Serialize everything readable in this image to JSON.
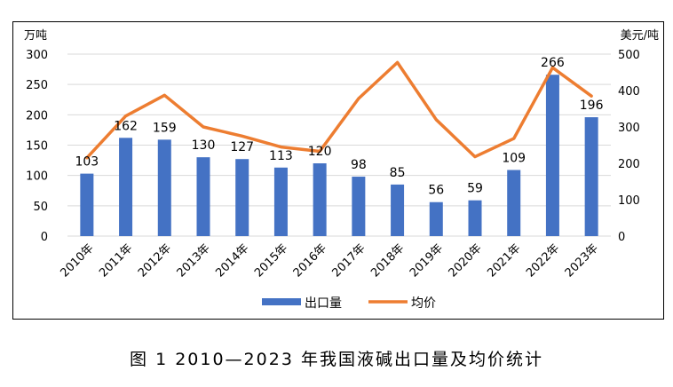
{
  "chart_data": {
    "type": "bar+line",
    "categories": [
      "2010年",
      "2011年",
      "2012年",
      "2013年",
      "2014年",
      "2015年",
      "2016年",
      "2017年",
      "2018年",
      "2019年",
      "2020年",
      "2021年",
      "2022年",
      "2023年"
    ],
    "series": [
      {
        "name": "出口量",
        "type": "bar",
        "axis": "left",
        "color": "#4472C4",
        "values": [
          103,
          162,
          159,
          130,
          127,
          113,
          120,
          98,
          85,
          56,
          59,
          109,
          266,
          196
        ],
        "data_labels": [
          "103",
          "162",
          "159",
          "130",
          "127",
          "113",
          "120",
          "98",
          "85",
          "56",
          "59",
          "109",
          "266",
          "196"
        ]
      },
      {
        "name": "均价",
        "type": "line",
        "axis": "right",
        "color": "#ED7D31",
        "values": [
          215,
          330,
          387,
          300,
          275,
          245,
          233,
          378,
          477,
          320,
          218,
          268,
          463,
          385
        ]
      }
    ],
    "yaxis_left": {
      "unit": "万吨",
      "min": 0,
      "max": 300,
      "ticks": [
        "0",
        "50",
        "100",
        "150",
        "200",
        "250",
        "300"
      ]
    },
    "yaxis_right": {
      "unit": "美元/吨",
      "min": 0,
      "max": 500,
      "ticks": [
        "0",
        "100",
        "200",
        "300",
        "400",
        "500"
      ]
    },
    "grid": true,
    "legend_position": "bottom"
  },
  "caption": "图 1  2010—2023 年我国液碱出口量及均价统计"
}
